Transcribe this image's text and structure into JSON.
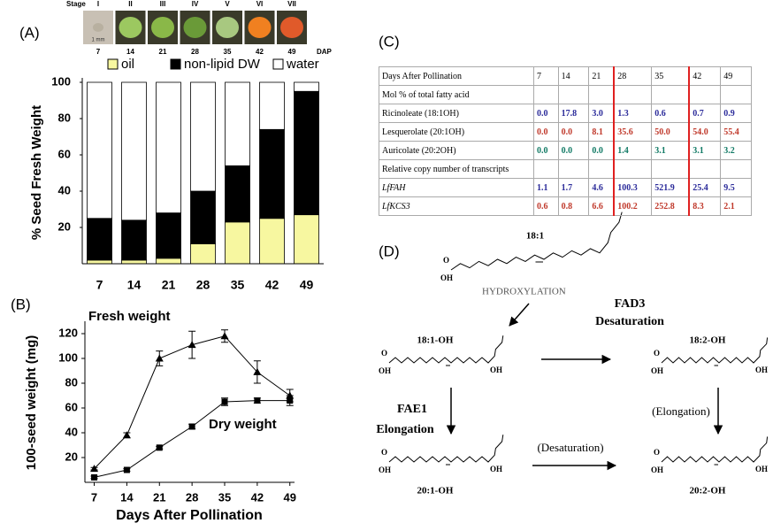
{
  "panel_labels": [
    "(A)",
    "(B)",
    "(C)",
    "(D)"
  ],
  "stages": {
    "label": "Stage",
    "numerals": [
      "I",
      "II",
      "III",
      "IV",
      "V",
      "VI",
      "VII"
    ],
    "scale_bar": "1 mm",
    "days": [
      7,
      14,
      21,
      28,
      35,
      42,
      49
    ],
    "unit": "DAP",
    "colors": [
      "#b8b0a0",
      "#9cc860",
      "#8ab848",
      "#6a9a38",
      "#a8c880",
      "#f08020",
      "#e05a2a"
    ]
  },
  "chart_data": [
    {
      "type": "stacked_bar",
      "y_label": "% Seed Fresh Weight",
      "categories": [
        "7",
        "14",
        "21",
        "28",
        "35",
        "42",
        "49"
      ],
      "series": [
        {
          "name": "oil",
          "color": "#f7f7a0",
          "values": [
            2,
            2,
            3,
            11,
            23,
            25,
            27
          ]
        },
        {
          "name": "non-lipid DW",
          "color": "#000000",
          "values": [
            23,
            22,
            25,
            29,
            31,
            49,
            68
          ]
        },
        {
          "name": "water",
          "color": "#ffffff",
          "values": [
            75,
            76,
            72,
            60,
            46,
            26,
            5
          ]
        }
      ],
      "ylim": [
        0,
        100
      ],
      "yticks": [
        20,
        40,
        60,
        80,
        100
      ]
    },
    {
      "type": "line",
      "x_label": "Days After Pollination",
      "y_label": "100-seed weight (mg)",
      "x": [
        7,
        14,
        21,
        28,
        35,
        42,
        49
      ],
      "xlim": [
        5,
        50
      ],
      "xticks": [
        7,
        14,
        21,
        28,
        35,
        42,
        49
      ],
      "ylim": [
        0,
        130
      ],
      "yticks": [
        20,
        40,
        60,
        80,
        100,
        120
      ],
      "series": [
        {
          "name": "Fresh weight",
          "marker": "triangle",
          "color": "#000000",
          "values": [
            11,
            38,
            100,
            111,
            118,
            89,
            70
          ],
          "errors": [
            1,
            2,
            6,
            11,
            5,
            9,
            5
          ]
        },
        {
          "name": "Dry weight",
          "marker": "square",
          "color": "#000000",
          "values": [
            4,
            10,
            28,
            45,
            65,
            66,
            66
          ],
          "errors": [
            1,
            1,
            1,
            2,
            3,
            2,
            4
          ]
        }
      ]
    }
  ],
  "table": {
    "rows": [
      {
        "label": "Days After Pollination",
        "color": "#000000",
        "italic": false,
        "cells": [
          "7",
          "14",
          "21",
          "28",
          "35",
          "42",
          "49"
        ]
      },
      {
        "label": "Mol % of total fatty acid",
        "color": "#000000",
        "italic": false
      },
      {
        "label": "Ricinoleate (18:1OH)",
        "color": "#2b2b9a",
        "italic": false,
        "cells": [
          "0.0",
          "17.8",
          "3.0",
          "1.3",
          "0.6",
          "0.7",
          "0.9"
        ]
      },
      {
        "label": "Lesquerolate (20:1OH)",
        "color": "#c0392b",
        "italic": false,
        "cells": [
          "0.0",
          "0.0",
          "8.1",
          "35.6",
          "50.0",
          "54.0",
          "55.4"
        ]
      },
      {
        "label": "Auricolate (20:2OH)",
        "color": "#117a65",
        "italic": false,
        "cells": [
          "0.0",
          "0.0",
          "0.0",
          "1.4",
          "3.1",
          "3.1",
          "3.2"
        ]
      },
      {
        "label": "Relative copy number of transcripts",
        "color": "#000000",
        "italic": false
      },
      {
        "label": "LfFAH",
        "color": "#2b2b9a",
        "italic": true,
        "cells": [
          "1.1",
          "1.7",
          "4.6",
          "100.3",
          "521.9",
          "25.4",
          "9.5"
        ]
      },
      {
        "label": "LfKCS3",
        "color": "#c0392b",
        "italic": true,
        "cells": [
          "0.6",
          "0.8",
          "6.6",
          "100.2",
          "252.8",
          "8.3",
          "2.1"
        ]
      }
    ]
  },
  "diagram": {
    "molecules": [
      {
        "name": "18:1",
        "atoms": [
          "O",
          "OH"
        ]
      },
      {
        "name": "18:1-OH",
        "atoms": [
          "O",
          "OH",
          "OH"
        ]
      },
      {
        "name": "18:2-OH",
        "atoms": [
          "O",
          "OH",
          "OH"
        ]
      },
      {
        "name": "20:1-OH",
        "atoms": [
          "O",
          "OH",
          "OH"
        ]
      },
      {
        "name": "20:2-OH",
        "atoms": [
          "O",
          "OH",
          "OH"
        ]
      }
    ],
    "steps": {
      "hydroxylation": "HYDROXYLATION",
      "fad3": "FAD3",
      "desaturation": "Desaturation",
      "fae1": "FAE1",
      "elongation": "Elongation",
      "elongation_alt": "(Elongation)",
      "desaturation_alt": "(Desaturation)"
    }
  }
}
